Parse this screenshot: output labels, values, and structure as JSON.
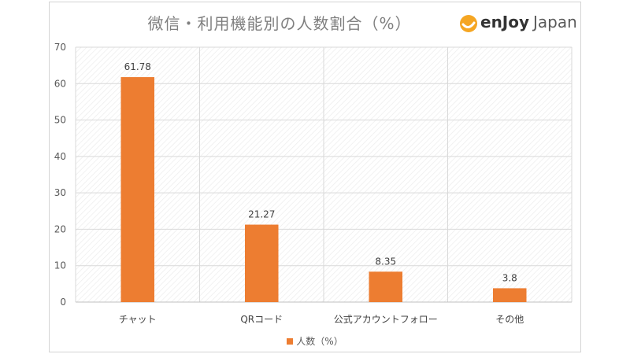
{
  "chart_data": {
    "type": "bar",
    "title": "微信・利用機能別の人数割合（%）",
    "categories": [
      "チャット",
      "QRコード",
      "公式アカウントフォロー",
      "その他"
    ],
    "series": [
      {
        "name": "人数（%）",
        "values": [
          61.78,
          21.27,
          8.35,
          3.8
        ],
        "color": "#ed7d31"
      }
    ],
    "y_ticks": [
      "0",
      "10",
      "20",
      "30",
      "40",
      "50",
      "60",
      "70"
    ],
    "ylim": [
      0,
      70
    ],
    "grid": true,
    "legend": "bottom",
    "data_labels": [
      "61.78",
      "21.27",
      "8.35",
      "3.8"
    ]
  },
  "logo": {
    "en": "enJoy",
    "jp": "Japan",
    "mark_color": "#f5a623"
  }
}
